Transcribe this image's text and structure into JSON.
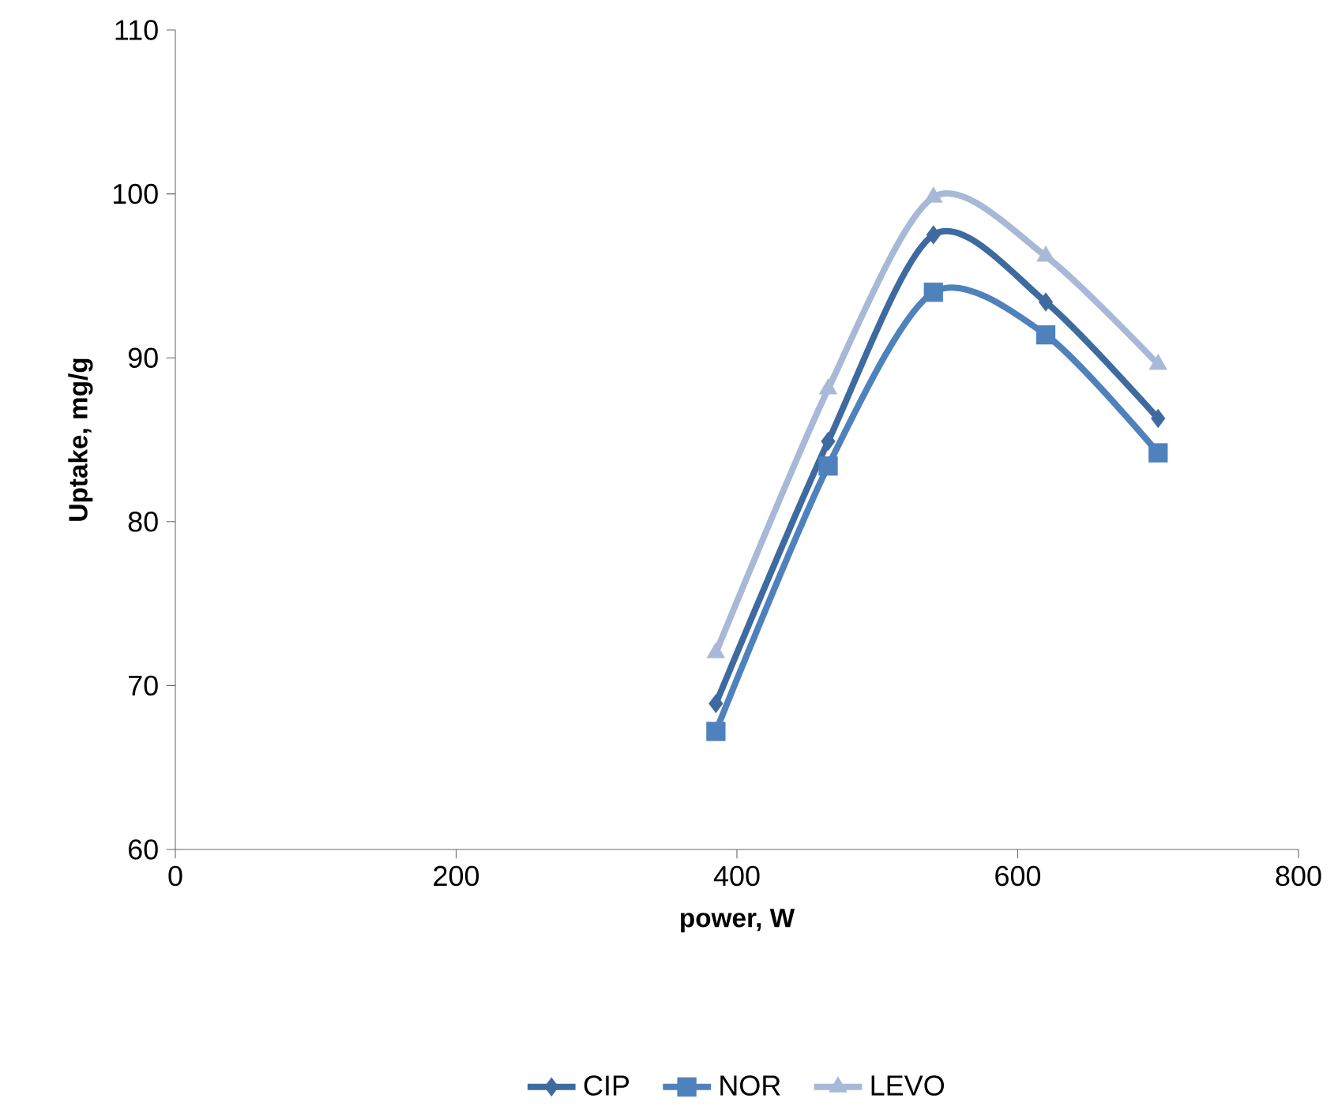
{
  "chart_data": {
    "type": "line",
    "xlabel": "power, W",
    "ylabel": "Uptake, mg/g",
    "x": [
      385,
      465,
      540,
      620,
      700
    ],
    "series": [
      {
        "name": "CIP",
        "color": "#3e6aa0",
        "marker": "diamond",
        "values": [
          68.9,
          84.9,
          97.5,
          93.4,
          86.3
        ]
      },
      {
        "name": "NOR",
        "color": "#4f81bd",
        "marker": "square",
        "values": [
          67.2,
          83.4,
          94.0,
          91.4,
          84.2
        ]
      },
      {
        "name": "LEVO",
        "color": "#a7b9d7",
        "marker": "triangle",
        "values": [
          72.0,
          88.1,
          99.8,
          96.2,
          89.6
        ]
      }
    ],
    "xlim": [
      0,
      800
    ],
    "xticks": [
      0,
      200,
      400,
      600,
      800
    ],
    "ylim": [
      60,
      110
    ],
    "yticks": [
      60,
      70,
      80,
      90,
      100,
      110
    ],
    "grid": false,
    "legend": "bottom",
    "line_style": "solid"
  }
}
